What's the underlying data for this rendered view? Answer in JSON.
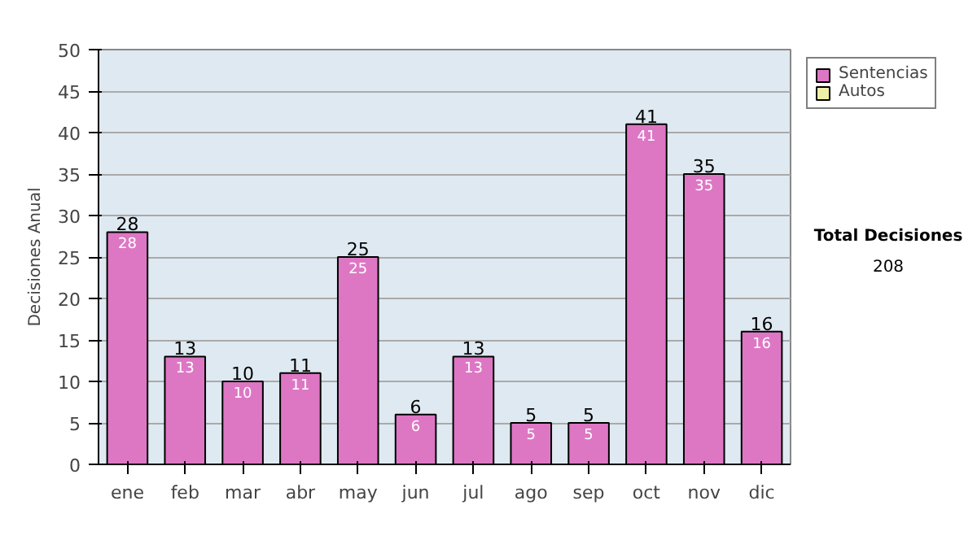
{
  "chart_data": {
    "type": "bar",
    "stacked": true,
    "ylabel": "Decisiones Anual",
    "categories": [
      "ene",
      "feb",
      "mar",
      "abr",
      "may",
      "jun",
      "jul",
      "ago",
      "sep",
      "oct",
      "nov",
      "dic"
    ],
    "series": [
      {
        "name": "Sentencias",
        "color": "#dd77c4",
        "values": [
          28,
          13,
          10,
          11,
          25,
          6,
          13,
          5,
          5,
          41,
          35,
          16
        ],
        "value_labels": [
          "28",
          "13",
          "10",
          "11",
          "25",
          "6",
          "13",
          "5",
          "5",
          "41",
          "35",
          "16"
        ]
      },
      {
        "name": "Autos",
        "color": "#eef0a8",
        "values": [
          null,
          null,
          null,
          null,
          null,
          null,
          null,
          null,
          null,
          null,
          null,
          null
        ]
      }
    ],
    "totals": [
      "28",
      "13",
      "10",
      "11",
      "25",
      "6",
      "13",
      "5",
      "5",
      "41",
      "35",
      "16"
    ],
    "ylim": [
      0,
      50
    ],
    "yticks": [
      0,
      5,
      10,
      15,
      20,
      25,
      30,
      35,
      40,
      45,
      50
    ],
    "grid": "y",
    "legend": "right",
    "annotations": [
      "Total Decisiones",
      "208"
    ]
  }
}
